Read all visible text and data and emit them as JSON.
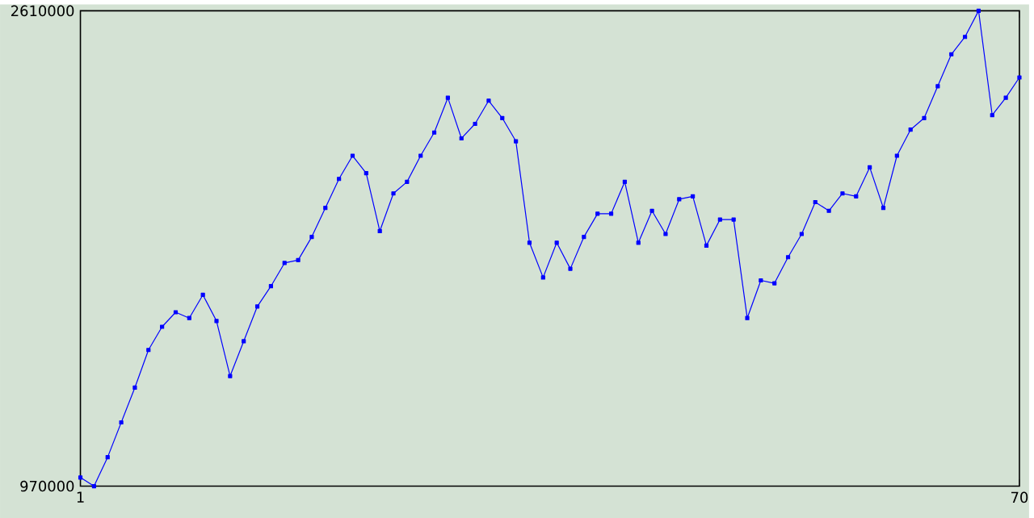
{
  "chart_data": {
    "type": "line",
    "x": [
      1,
      2,
      3,
      4,
      5,
      6,
      7,
      8,
      9,
      10,
      11,
      12,
      13,
      14,
      15,
      16,
      17,
      18,
      19,
      20,
      21,
      22,
      23,
      24,
      25,
      26,
      27,
      28,
      29,
      30,
      31,
      32,
      33,
      34,
      35,
      36,
      37,
      38,
      39,
      40,
      41,
      42,
      43,
      44,
      45,
      46,
      47,
      48,
      49,
      50,
      51,
      52,
      53,
      54,
      55,
      56,
      57,
      58,
      59,
      60,
      61,
      62,
      63,
      64,
      65,
      66,
      67,
      68,
      69,
      70
    ],
    "series": [
      {
        "color": "#0000ff",
        "values": [
          1000000,
          970000,
          1070000,
          1190000,
          1310000,
          1440000,
          1520000,
          1570000,
          1550000,
          1630000,
          1540000,
          1350000,
          1470000,
          1590000,
          1660000,
          1740000,
          1750000,
          1830000,
          1930000,
          2030000,
          2110000,
          2050000,
          1850000,
          1980000,
          2020000,
          2110000,
          2190000,
          2310000,
          2170000,
          2220000,
          2300000,
          2240000,
          2160000,
          1810000,
          1690000,
          1810000,
          1720000,
          1830000,
          1910000,
          1910000,
          2020000,
          1810000,
          1920000,
          1840000,
          1960000,
          1970000,
          1800000,
          1890000,
          1890000,
          1550000,
          1680000,
          1670000,
          1760000,
          1840000,
          1950000,
          1920000,
          1980000,
          1970000,
          2070000,
          1930000,
          2110000,
          2200000,
          2240000,
          2350000,
          2460000,
          2520000,
          2610000,
          2250000,
          2310000,
          2380000
        ]
      }
    ],
    "xlim": [
      1,
      70
    ],
    "xticks": [
      1,
      70
    ],
    "ylim": [
      970000,
      2610000
    ],
    "yticks": [
      970000,
      2610000
    ],
    "marker": "square",
    "line_style": "solid"
  }
}
